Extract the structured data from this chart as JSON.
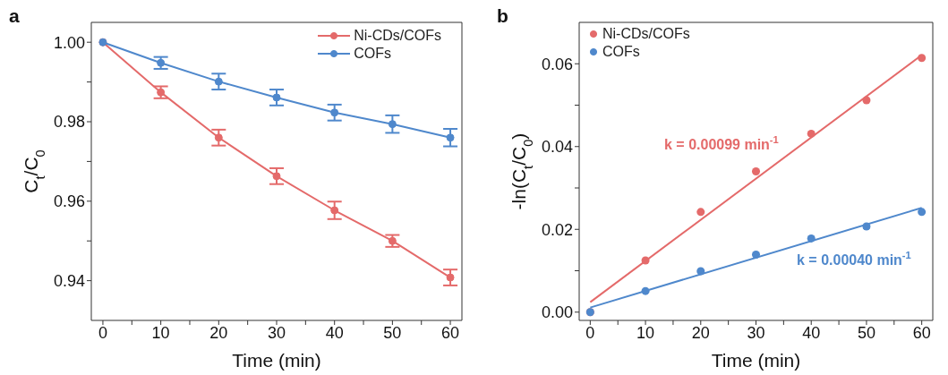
{
  "chart_data": [
    {
      "type": "line",
      "title": "a",
      "xlabel": "Time (min)",
      "ylabel": "C$_{t}$/C$_{0}$",
      "x": [
        0,
        10,
        20,
        30,
        40,
        50,
        60
      ],
      "series": [
        {
          "name": "Ni-CDs/COFs",
          "color": "#e46a6a",
          "values": [
            1.0,
            0.9874,
            0.976,
            0.9663,
            0.9577,
            0.95,
            0.9408
          ],
          "errors": [
            null,
            0.0015,
            0.002,
            0.002,
            0.0022,
            0.0015,
            0.002
          ]
        },
        {
          "name": "COFs",
          "color": "#4f88cc",
          "values": [
            1.0,
            0.9948,
            0.9901,
            0.9861,
            0.9823,
            0.9794,
            0.976
          ],
          "errors": [
            null,
            0.0015,
            0.002,
            0.002,
            0.002,
            0.0022,
            0.0022
          ]
        }
      ],
      "xlim": [
        -2,
        62
      ],
      "xticks": [
        0,
        {
          "value": 5,
          "label": null
        },
        10,
        {
          "value": 15,
          "label": null
        },
        20,
        {
          "value": 25,
          "label": null
        },
        30,
        {
          "value": 35,
          "label": null
        },
        40,
        {
          "value": 45,
          "label": null
        },
        50,
        {
          "value": 55,
          "label": null
        },
        60
      ],
      "ylim": [
        0.93,
        1.005
      ],
      "yticks": [
        {
          "value": 0.94,
          "label": "0.94"
        },
        {
          "value": 0.95,
          "label": null
        },
        {
          "value": 0.96,
          "label": "0.96"
        },
        {
          "value": 0.97,
          "label": null
        },
        {
          "value": 0.98,
          "label": "0.98"
        },
        {
          "value": 0.99,
          "label": null
        },
        {
          "value": 1.0,
          "label": "1.00"
        }
      ],
      "legend": "top right",
      "marker": "circle",
      "grid": false
    },
    {
      "type": "scatter",
      "title": "b",
      "xlabel": "Time (min)",
      "ylabel": "-ln(C$_{t}$/C$_{0}$)",
      "series": [
        {
          "name": "Ni-CDs/COFs",
          "color": "#e46a6a",
          "x": [
            0,
            10,
            20,
            30,
            40,
            50,
            60
          ],
          "values": [
            0,
            0.0125,
            0.0242,
            0.034,
            0.0431,
            0.0512,
            0.0614
          ]
        },
        {
          "name": "COFs",
          "color": "#4f88cc",
          "x": [
            0,
            10,
            20,
            30,
            40,
            50,
            60
          ],
          "values": [
            0,
            0.0051,
            0.0099,
            0.0139,
            0.0178,
            0.0207,
            0.0242
          ]
        },
        {
          "type": "line",
          "marker": "none",
          "color": "#e46a6a",
          "x": [
            0,
            60
          ],
          "values": [
            0.0024,
            0.0621
          ]
        },
        {
          "type": "line",
          "marker": "none",
          "color": "#4f88cc",
          "x": [
            0,
            60
          ],
          "values": [
            0.0011,
            0.0252
          ]
        }
      ],
      "annotations": [
        "k = 0.00099 min$^{-1}$",
        "k = 0.00040 min$^{-1}$"
      ],
      "xlim": [
        -2,
        62
      ],
      "xticks": [
        0,
        {
          "value": 5,
          "label": null
        },
        10,
        {
          "value": 15,
          "label": null
        },
        20,
        {
          "value": 25,
          "label": null
        },
        30,
        {
          "value": 35,
          "label": null
        },
        40,
        {
          "value": 45,
          "label": null
        },
        50,
        {
          "value": 55,
          "label": null
        },
        60
      ],
      "ylim": [
        -0.002,
        0.07
      ],
      "yticks": [
        {
          "value": 0,
          "label": "0.00"
        },
        {
          "value": 0.01,
          "label": null
        },
        0.02,
        {
          "value": 0.03,
          "label": null
        },
        0.04,
        {
          "value": 0.05,
          "label": null
        },
        0.06
      ],
      "legend": "top left",
      "marker": "circle",
      "grid": false
    }
  ]
}
